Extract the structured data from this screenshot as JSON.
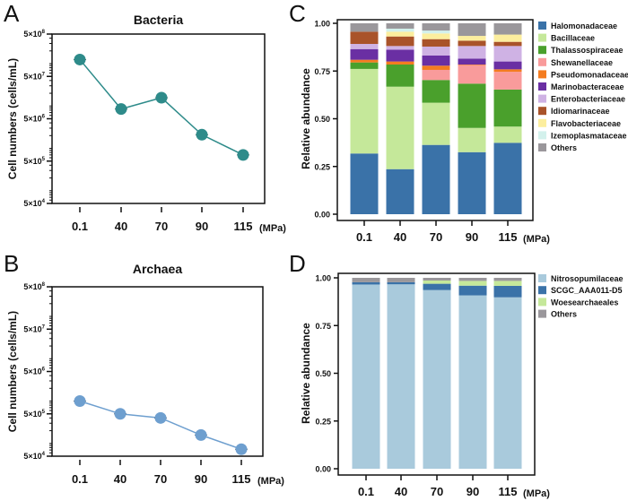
{
  "chart_data": [
    {
      "panel": "A",
      "type": "line",
      "title": "Bacteria",
      "xlabel": "(MPa)",
      "ylabel": "Cell numbers (cells/mL)",
      "yscale": "log",
      "ylim": [
        50000,
        500000000
      ],
      "y_ticks": [
        500000000,
        50000000,
        5000000,
        500000,
        50000
      ],
      "y_tick_labels": [
        [
          "5×10",
          "8"
        ],
        [
          "5×10",
          "7"
        ],
        [
          "5×10",
          "6"
        ],
        [
          "5×10",
          "5"
        ],
        [
          "5×10",
          "4"
        ]
      ],
      "categories": [
        "0.1",
        "40",
        "70",
        "90",
        "115"
      ],
      "values": [
        125000000,
        8500000,
        15700000,
        2100000,
        700000
      ],
      "color": "#2e8b8a",
      "grid": false
    },
    {
      "panel": "B",
      "type": "line",
      "title": "Archaea",
      "xlabel": "(MPa)",
      "ylabel": "Cell numbers (cells/mL)",
      "yscale": "log",
      "ylim": [
        50000,
        500000000
      ],
      "y_ticks": [
        500000000,
        50000000,
        5000000,
        500000,
        50000
      ],
      "y_tick_labels": [
        [
          "5×10",
          "8"
        ],
        [
          "5×10",
          "7"
        ],
        [
          "5×10",
          "6"
        ],
        [
          "5×10",
          "5"
        ],
        [
          "5×10",
          "4"
        ]
      ],
      "categories": [
        "0.1",
        "40",
        "70",
        "90",
        "115"
      ],
      "values": [
        1000000,
        500000,
        400000,
        158000,
        73000
      ],
      "color": "#6e9fcf",
      "grid": false
    },
    {
      "panel": "C",
      "type": "bar",
      "stacked": true,
      "title": "",
      "xlabel": "(MPa)",
      "ylabel": "Relative abundance",
      "ylim": [
        0,
        1
      ],
      "y_ticks": [
        "0.00",
        "0.25",
        "0.50",
        "0.75",
        "1.00"
      ],
      "categories": [
        "0.1",
        "40",
        "70",
        "90",
        "115"
      ],
      "legend_position": "right",
      "series": [
        {
          "name": "Halomonadaceae",
          "color": "#3a72a8",
          "values": [
            0.318,
            0.236,
            0.363,
            0.325,
            0.374
          ]
        },
        {
          "name": "Bacillaceae",
          "color": "#c5e89a",
          "values": [
            0.443,
            0.432,
            0.221,
            0.127,
            0.085
          ]
        },
        {
          "name": "Thalassospiraceae",
          "color": "#4aa02c",
          "values": [
            0.034,
            0.116,
            0.119,
            0.232,
            0.194
          ]
        },
        {
          "name": "Shewanellaceae",
          "color": "#f99b9b",
          "values": [
            0.0,
            0.0,
            0.053,
            0.097,
            0.093
          ]
        },
        {
          "name": "Pseudomonadaceae",
          "color": "#f47c20",
          "values": [
            0.014,
            0.016,
            0.022,
            0.003,
            0.013
          ]
        },
        {
          "name": "Marinobacteraceae",
          "color": "#6a2fa3",
          "values": [
            0.056,
            0.062,
            0.053,
            0.031,
            0.041
          ]
        },
        {
          "name": "Enterobacteriaceae",
          "color": "#cfb2e4",
          "values": [
            0.027,
            0.019,
            0.047,
            0.066,
            0.081
          ]
        },
        {
          "name": "Idiomarinaceae",
          "color": "#a9532a",
          "values": [
            0.064,
            0.05,
            0.039,
            0.028,
            0.022
          ]
        },
        {
          "name": "Flavobacteriaceae",
          "color": "#fcee9e",
          "values": [
            0.0,
            0.025,
            0.03,
            0.025,
            0.038
          ]
        },
        {
          "name": "Izemoplasmataceae",
          "color": "#d3f1ec",
          "values": [
            0.0,
            0.016,
            0.015,
            0.0,
            0.0
          ]
        },
        {
          "name": "Others",
          "color": "#9a979b",
          "values": [
            0.044,
            0.028,
            0.038,
            0.066,
            0.059
          ]
        }
      ]
    },
    {
      "panel": "D",
      "type": "bar",
      "stacked": true,
      "title": "",
      "xlabel": "(MPa)",
      "ylabel": "Relative abundance",
      "ylim": [
        0,
        1
      ],
      "y_ticks": [
        "0.00",
        "0.25",
        "0.50",
        "0.75",
        "1.00"
      ],
      "categories": [
        "0.1",
        "40",
        "70",
        "90",
        "115"
      ],
      "legend_position": "right",
      "series": [
        {
          "name": "Nitrosopumilaceae",
          "color": "#a9cadc",
          "values": [
            0.965,
            0.966,
            0.936,
            0.908,
            0.898
          ]
        },
        {
          "name": "SCGC_AAA011-D5",
          "color": "#3a72a8",
          "values": [
            0.012,
            0.011,
            0.033,
            0.051,
            0.06
          ]
        },
        {
          "name": "Woesearchaeales",
          "color": "#c5e89a",
          "values": [
            0.0,
            0.0,
            0.017,
            0.025,
            0.026
          ]
        },
        {
          "name": "Others",
          "color": "#9a979b",
          "values": [
            0.023,
            0.023,
            0.014,
            0.016,
            0.016
          ]
        }
      ]
    }
  ]
}
